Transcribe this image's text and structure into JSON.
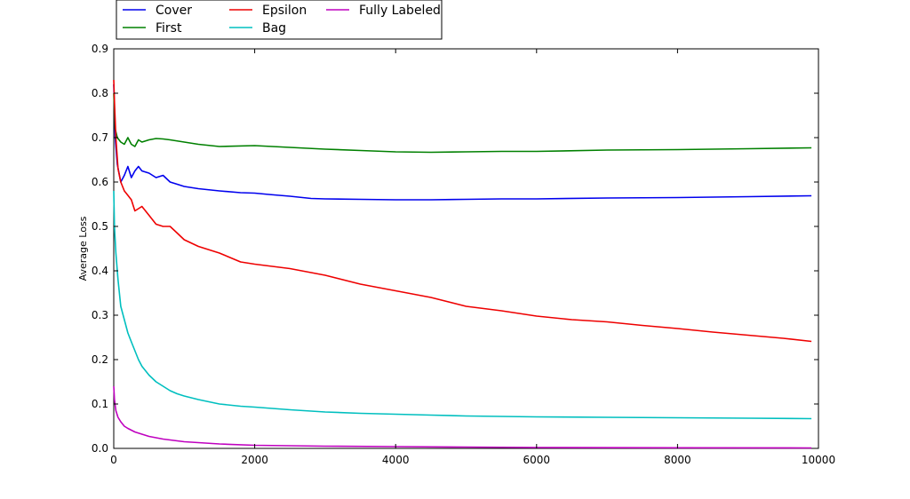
{
  "chart_data": {
    "type": "line",
    "title": "",
    "xlabel": "",
    "ylabel": "Average Loss",
    "xlim": [
      0,
      10000
    ],
    "ylim": [
      0,
      0.9
    ],
    "xticks": [
      0,
      2000,
      4000,
      6000,
      8000,
      10000
    ],
    "yticks": [
      0.0,
      0.1,
      0.2,
      0.3,
      0.4,
      0.5,
      0.6,
      0.7,
      0.8,
      0.9
    ],
    "xtick_labels": [
      "0",
      "2000",
      "4000",
      "6000",
      "8000",
      "10000"
    ],
    "ytick_labels": [
      "0.0",
      "0.1",
      "0.2",
      "0.3",
      "0.4",
      "0.5",
      "0.6",
      "0.7",
      "0.8",
      "0.9"
    ],
    "grid": false,
    "legend": {
      "placement": "top-left above axes",
      "columns": 3
    },
    "series": [
      {
        "name": "Cover",
        "color": "#0000ee",
        "x": [
          0,
          20,
          50,
          100,
          150,
          200,
          250,
          300,
          350,
          400,
          500,
          600,
          700,
          800,
          900,
          1000,
          1200,
          1500,
          1800,
          2000,
          2200,
          2500,
          2800,
          3000,
          3500,
          4000,
          4500,
          5000,
          5500,
          6000,
          7000,
          8000,
          9000,
          9900
        ],
        "y": [
          0.82,
          0.7,
          0.64,
          0.6,
          0.615,
          0.635,
          0.61,
          0.625,
          0.635,
          0.625,
          0.62,
          0.61,
          0.615,
          0.6,
          0.595,
          0.59,
          0.585,
          0.58,
          0.576,
          0.575,
          0.572,
          0.568,
          0.563,
          0.562,
          0.561,
          0.56,
          0.56,
          0.561,
          0.562,
          0.562,
          0.564,
          0.565,
          0.567,
          0.569
        ]
      },
      {
        "name": "First",
        "color": "#008000",
        "x": [
          0,
          20,
          50,
          100,
          150,
          200,
          250,
          300,
          350,
          400,
          500,
          600,
          700,
          800,
          1000,
          1200,
          1500,
          2000,
          2500,
          3000,
          3500,
          4000,
          4500,
          5000,
          5500,
          6000,
          7000,
          8000,
          9000,
          9900
        ],
        "y": [
          0.8,
          0.72,
          0.7,
          0.69,
          0.685,
          0.7,
          0.685,
          0.68,
          0.695,
          0.69,
          0.695,
          0.698,
          0.697,
          0.695,
          0.69,
          0.685,
          0.68,
          0.682,
          0.678,
          0.674,
          0.671,
          0.668,
          0.667,
          0.668,
          0.669,
          0.669,
          0.672,
          0.673,
          0.675,
          0.677
        ]
      },
      {
        "name": "Epsilon",
        "color": "#ee0000",
        "x": [
          0,
          10,
          30,
          60,
          100,
          150,
          200,
          250,
          300,
          350,
          400,
          500,
          600,
          700,
          800,
          900,
          1000,
          1200,
          1500,
          1800,
          2000,
          2500,
          3000,
          3500,
          4000,
          4500,
          5000,
          5500,
          6000,
          6500,
          7000,
          7500,
          8000,
          8500,
          9000,
          9500,
          9900
        ],
        "y": [
          0.83,
          0.78,
          0.7,
          0.63,
          0.6,
          0.58,
          0.57,
          0.56,
          0.535,
          0.54,
          0.545,
          0.525,
          0.505,
          0.5,
          0.5,
          0.485,
          0.47,
          0.455,
          0.44,
          0.42,
          0.415,
          0.405,
          0.39,
          0.37,
          0.355,
          0.34,
          0.32,
          0.31,
          0.298,
          0.29,
          0.285,
          0.277,
          0.27,
          0.262,
          0.255,
          0.248,
          0.241
        ]
      },
      {
        "name": "Bag",
        "color": "#00bfbf",
        "x": [
          0,
          10,
          30,
          60,
          100,
          150,
          200,
          250,
          300,
          350,
          400,
          500,
          600,
          700,
          800,
          900,
          1000,
          1200,
          1500,
          1800,
          2000,
          2500,
          3000,
          3500,
          4000,
          4500,
          5000,
          6000,
          7000,
          8000,
          9000,
          9900
        ],
        "y": [
          0.58,
          0.5,
          0.44,
          0.38,
          0.32,
          0.29,
          0.26,
          0.24,
          0.22,
          0.2,
          0.185,
          0.165,
          0.15,
          0.14,
          0.13,
          0.123,
          0.118,
          0.11,
          0.1,
          0.095,
          0.093,
          0.087,
          0.082,
          0.079,
          0.077,
          0.075,
          0.073,
          0.071,
          0.07,
          0.069,
          0.068,
          0.067
        ]
      },
      {
        "name": "Fully Labeled",
        "color": "#bf00bf",
        "x": [
          0,
          10,
          30,
          60,
          100,
          150,
          200,
          300,
          400,
          500,
          700,
          1000,
          1500,
          2000,
          3000,
          4000,
          5000,
          6000,
          8000,
          9900
        ],
        "y": [
          0.14,
          0.11,
          0.085,
          0.07,
          0.06,
          0.05,
          0.045,
          0.037,
          0.032,
          0.027,
          0.021,
          0.015,
          0.01,
          0.007,
          0.005,
          0.004,
          0.003,
          0.002,
          0.0015,
          0.001
        ]
      }
    ]
  }
}
